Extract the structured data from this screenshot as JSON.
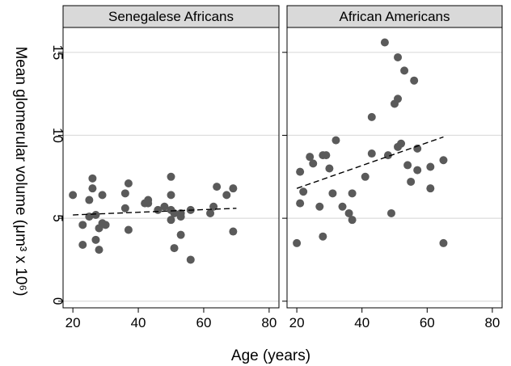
{
  "chart_data": [
    {
      "type": "scatter",
      "panel_title": "Senegalese Africans",
      "xlabel": "Age (years)",
      "ylabel": "Mean glomerular volume (μm³ x 10⁶)",
      "xlim": [
        17,
        83
      ],
      "ylim": [
        -0.4,
        16.5
      ],
      "xticks": [
        20,
        40,
        60,
        80
      ],
      "yticks": [
        0,
        5,
        10,
        15
      ],
      "grid": true,
      "point_color": "#5a5a5a",
      "points": [
        {
          "x": 20,
          "y": 6.4
        },
        {
          "x": 23,
          "y": 4.6
        },
        {
          "x": 23,
          "y": 3.4
        },
        {
          "x": 25,
          "y": 6.1
        },
        {
          "x": 25,
          "y": 5.1
        },
        {
          "x": 26,
          "y": 7.4
        },
        {
          "x": 26,
          "y": 6.8
        },
        {
          "x": 27,
          "y": 5.2
        },
        {
          "x": 27,
          "y": 3.7
        },
        {
          "x": 28,
          "y": 4.4
        },
        {
          "x": 28,
          "y": 3.1
        },
        {
          "x": 29,
          "y": 6.4
        },
        {
          "x": 29,
          "y": 4.7
        },
        {
          "x": 30,
          "y": 4.6
        },
        {
          "x": 36,
          "y": 6.5
        },
        {
          "x": 36,
          "y": 5.6
        },
        {
          "x": 37,
          "y": 7.1
        },
        {
          "x": 37,
          "y": 4.3
        },
        {
          "x": 42,
          "y": 5.9
        },
        {
          "x": 43,
          "y": 6.1
        },
        {
          "x": 43,
          "y": 5.9
        },
        {
          "x": 46,
          "y": 5.5
        },
        {
          "x": 48,
          "y": 5.7
        },
        {
          "x": 50,
          "y": 7.5
        },
        {
          "x": 50,
          "y": 6.4
        },
        {
          "x": 50,
          "y": 5.5
        },
        {
          "x": 50,
          "y": 4.9
        },
        {
          "x": 51,
          "y": 5.3
        },
        {
          "x": 51,
          "y": 3.2
        },
        {
          "x": 53,
          "y": 5.3
        },
        {
          "x": 53,
          "y": 5.1
        },
        {
          "x": 53,
          "y": 4.0
        },
        {
          "x": 56,
          "y": 5.5
        },
        {
          "x": 56,
          "y": 2.5
        },
        {
          "x": 62,
          "y": 5.3
        },
        {
          "x": 63,
          "y": 5.7
        },
        {
          "x": 64,
          "y": 6.9
        },
        {
          "x": 67,
          "y": 6.4
        },
        {
          "x": 69,
          "y": 6.8
        },
        {
          "x": 69,
          "y": 4.2
        }
      ],
      "trend_line": {
        "x": [
          20,
          70
        ],
        "y": [
          5.2,
          5.6
        ]
      }
    },
    {
      "type": "scatter",
      "panel_title": "African Americans",
      "xlabel": "Age (years)",
      "ylabel": "Mean glomerular volume (μm³ x 10⁶)",
      "xlim": [
        17,
        83
      ],
      "ylim": [
        -0.4,
        16.5
      ],
      "xticks": [
        20,
        40,
        60,
        80
      ],
      "yticks": [
        0,
        5,
        10,
        15
      ],
      "grid": true,
      "point_color": "#5a5a5a",
      "points": [
        {
          "x": 20,
          "y": 3.5
        },
        {
          "x": 21,
          "y": 7.8
        },
        {
          "x": 21,
          "y": 5.9
        },
        {
          "x": 22,
          "y": 6.6
        },
        {
          "x": 24,
          "y": 8.7
        },
        {
          "x": 25,
          "y": 8.3
        },
        {
          "x": 27,
          "y": 5.7
        },
        {
          "x": 28,
          "y": 8.8
        },
        {
          "x": 28,
          "y": 3.9
        },
        {
          "x": 29,
          "y": 8.8
        },
        {
          "x": 30,
          "y": 8.0
        },
        {
          "x": 31,
          "y": 6.5
        },
        {
          "x": 32,
          "y": 9.7
        },
        {
          "x": 34,
          "y": 5.7
        },
        {
          "x": 36,
          "y": 5.3
        },
        {
          "x": 37,
          "y": 6.5
        },
        {
          "x": 37,
          "y": 4.9
        },
        {
          "x": 41,
          "y": 7.5
        },
        {
          "x": 43,
          "y": 11.1
        },
        {
          "x": 43,
          "y": 8.9
        },
        {
          "x": 47,
          "y": 15.6
        },
        {
          "x": 48,
          "y": 8.8
        },
        {
          "x": 49,
          "y": 5.3
        },
        {
          "x": 50,
          "y": 11.9
        },
        {
          "x": 51,
          "y": 14.7
        },
        {
          "x": 51,
          "y": 12.2
        },
        {
          "x": 51,
          "y": 9.3
        },
        {
          "x": 52,
          "y": 9.5
        },
        {
          "x": 53,
          "y": 13.9
        },
        {
          "x": 54,
          "y": 8.2
        },
        {
          "x": 55,
          "y": 7.2
        },
        {
          "x": 56,
          "y": 13.3
        },
        {
          "x": 57,
          "y": 9.2
        },
        {
          "x": 57,
          "y": 7.9
        },
        {
          "x": 61,
          "y": 8.1
        },
        {
          "x": 61,
          "y": 6.8
        },
        {
          "x": 65,
          "y": 8.5
        },
        {
          "x": 65,
          "y": 3.5
        }
      ],
      "trend_line": {
        "x": [
          20,
          65
        ],
        "y": [
          6.8,
          9.9
        ]
      }
    }
  ]
}
